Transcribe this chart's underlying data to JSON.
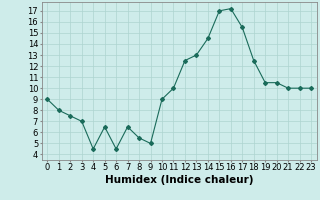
{
  "x": [
    0,
    1,
    2,
    3,
    4,
    5,
    6,
    7,
    8,
    9,
    10,
    11,
    12,
    13,
    14,
    15,
    16,
    17,
    18,
    19,
    20,
    21,
    22,
    23
  ],
  "y": [
    9,
    8,
    7.5,
    7,
    4.5,
    6.5,
    4.5,
    6.5,
    5.5,
    5,
    9,
    10,
    12.5,
    13,
    14.5,
    17,
    17.2,
    15.5,
    12.5,
    10.5,
    10.5,
    10,
    10,
    10
  ],
  "line_color": "#1a6b5a",
  "marker": "D",
  "marker_size": 2.0,
  "bg_color": "#ceecea",
  "grid_color": "#aed4d0",
  "xlabel": "Humidex (Indice chaleur)",
  "xlabel_fontsize": 7.5,
  "tick_fontsize": 6,
  "xlim": [
    -0.5,
    23.5
  ],
  "ylim": [
    3.5,
    17.8
  ],
  "yticks": [
    4,
    5,
    6,
    7,
    8,
    9,
    10,
    11,
    12,
    13,
    14,
    15,
    16,
    17
  ],
  "xticks": [
    0,
    1,
    2,
    3,
    4,
    5,
    6,
    7,
    8,
    9,
    10,
    11,
    12,
    13,
    14,
    15,
    16,
    17,
    18,
    19,
    20,
    21,
    22,
    23
  ]
}
